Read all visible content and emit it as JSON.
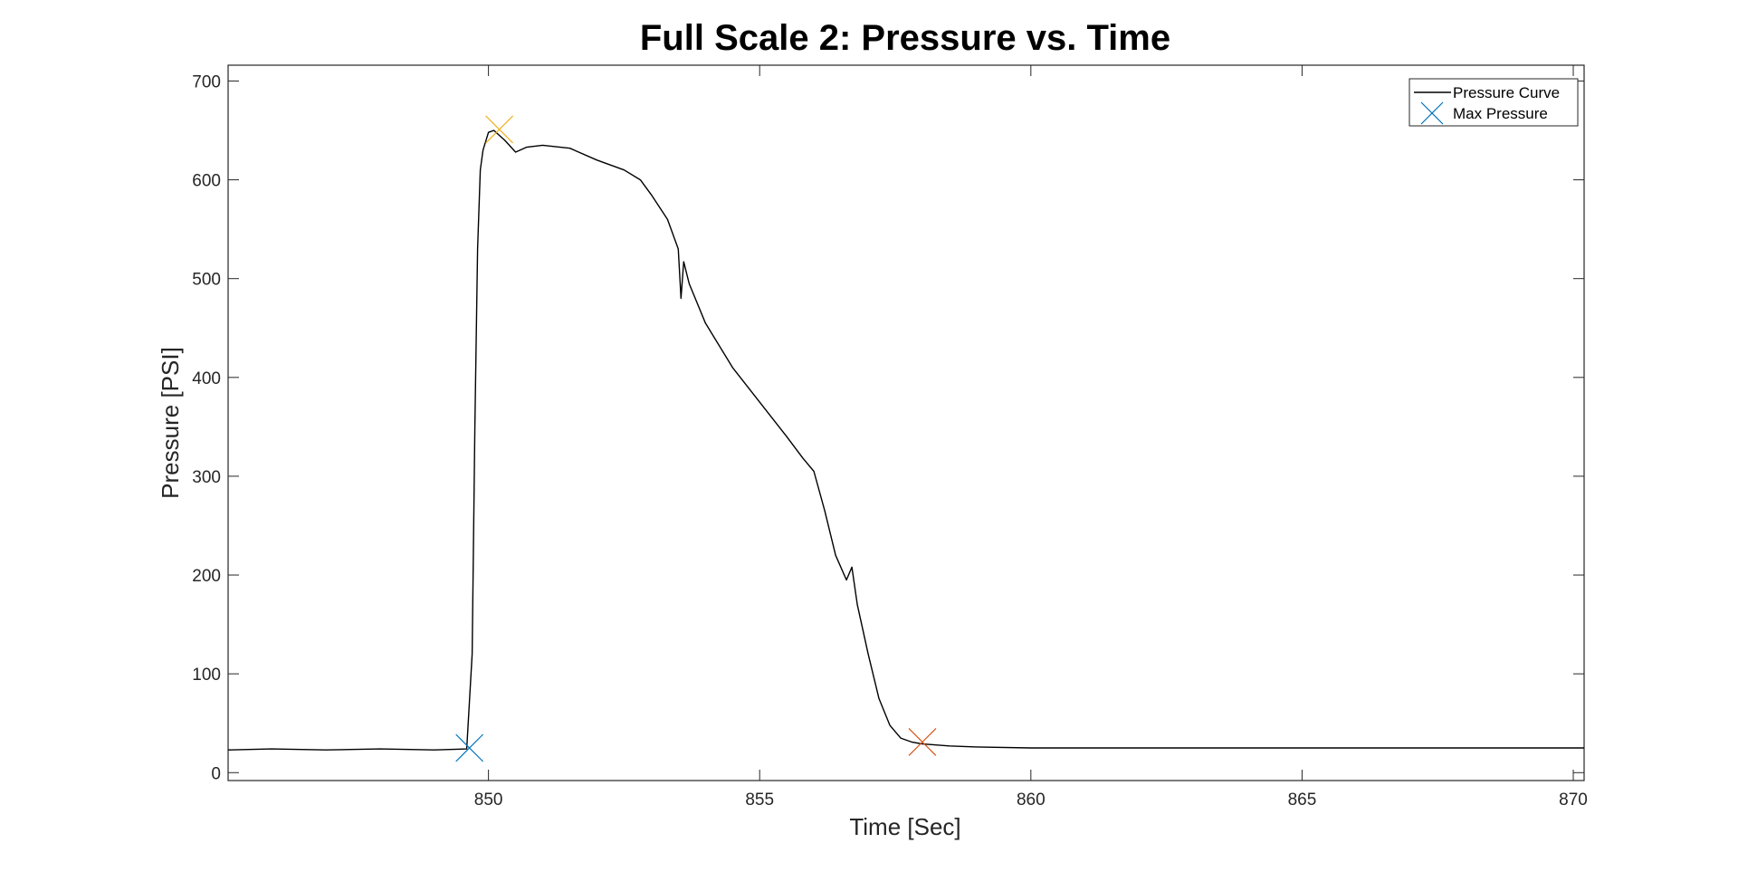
{
  "chart_data": {
    "type": "line",
    "title": "Full Scale 2: Pressure vs. Time",
    "xlabel": "Time [Sec]",
    "ylabel": "Pressure [PSI]",
    "xlim": [
      845.2,
      870.2
    ],
    "ylim": [
      -8,
      716
    ],
    "xticks": [
      850,
      855,
      860,
      865,
      870
    ],
    "yticks": [
      0,
      100,
      200,
      300,
      400,
      500,
      600,
      700
    ],
    "grid": false,
    "legend_position": "top-right",
    "series": [
      {
        "name": "Pressure Curve",
        "color": "#000000",
        "x": [
          845.2,
          846.0,
          847.0,
          848.0,
          849.0,
          849.6,
          849.7,
          849.75,
          849.8,
          849.85,
          849.9,
          850.0,
          850.1,
          850.2,
          850.3,
          850.5,
          850.7,
          851.0,
          851.5,
          852.0,
          852.5,
          852.8,
          853.0,
          853.3,
          853.5,
          853.55,
          853.6,
          853.7,
          854.0,
          854.5,
          855.0,
          855.5,
          855.8,
          856.0,
          856.2,
          856.4,
          856.6,
          856.7,
          856.8,
          857.0,
          857.2,
          857.4,
          857.6,
          857.8,
          858.0,
          858.5,
          859.0,
          860.0,
          861.0,
          862.0,
          863.0,
          864.0,
          865.0,
          866.0,
          867.0,
          868.0,
          869.0,
          870.2
        ],
        "y": [
          23,
          24,
          23,
          24,
          23,
          24,
          120,
          350,
          530,
          610,
          630,
          648,
          650,
          645,
          640,
          628,
          633,
          635,
          632,
          620,
          610,
          600,
          585,
          560,
          530,
          480,
          517,
          495,
          455,
          410,
          375,
          340,
          318,
          305,
          265,
          220,
          195,
          208,
          170,
          120,
          75,
          48,
          35,
          31,
          29,
          27,
          26,
          25,
          25,
          25,
          25,
          25,
          25,
          25,
          25,
          25,
          25,
          25
        ]
      }
    ],
    "markers": [
      {
        "name": "Max Pressure",
        "label": "Max Pressure",
        "x": 849.65,
        "y": 25,
        "color": "#0072BD",
        "shape": "x"
      },
      {
        "x": 850.2,
        "y": 651,
        "color": "#EDB120",
        "shape": "x"
      },
      {
        "x": 858.0,
        "y": 31,
        "color": "#D95319",
        "shape": "x"
      }
    ],
    "legend": [
      "Pressure Curve",
      "Max Pressure"
    ]
  }
}
